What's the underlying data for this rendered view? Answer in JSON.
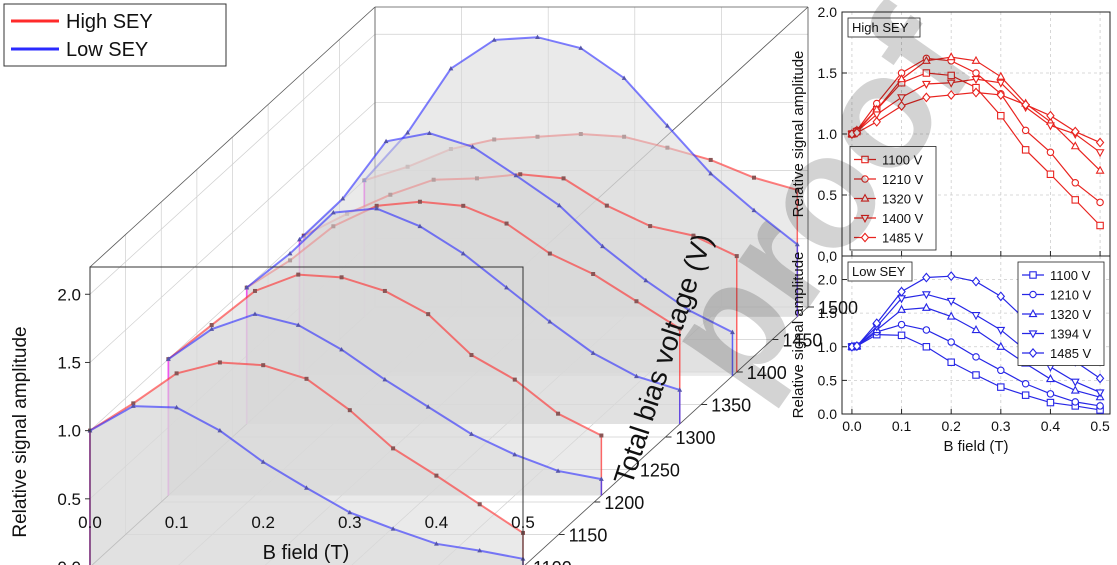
{
  "watermark": "proof",
  "charts": [
    {
      "id": "perspective",
      "type": "line",
      "projection": "3d-waterfall",
      "xlabel": "B field (T)",
      "ylabel": "Relative signal amplitude",
      "zlabel": "Total bias voltage (V)",
      "xlim": [
        0,
        0.5
      ],
      "ylim": [
        0,
        2.2
      ],
      "zlim": [
        1100,
        1500
      ],
      "x_ticks": [
        "0.0",
        "0.1",
        "0.2",
        "0.3",
        "0.4",
        "0.5"
      ],
      "y_ticks": [
        "0.0",
        "0.5",
        "1.0",
        "1.5",
        "2.0"
      ],
      "z_ticks": [
        "1100",
        "1150",
        "1200",
        "1250",
        "1300",
        "1350",
        "1400",
        "1450",
        "1500"
      ],
      "legend": {
        "position": "top-left",
        "entries": [
          {
            "label": "High SEY",
            "color": "#ff2a2a"
          },
          {
            "label": "Low SEY",
            "color": "#2a2aff"
          }
        ]
      },
      "grid": true
    },
    {
      "id": "high-sey",
      "type": "line",
      "panel_label": "High SEY",
      "xlabel": "",
      "ylabel": "Relative signal amplitude",
      "xlim": [
        -0.02,
        0.52
      ],
      "ylim": [
        0,
        2.0
      ],
      "y_ticks": [
        "0,0",
        "0.5",
        "1.0",
        "1.5",
        "2.0"
      ],
      "grid": true,
      "color": "#e8231f",
      "legend_position": "bottom-left",
      "x": [
        0,
        0.01,
        0.05,
        0.1,
        0.15,
        0.2,
        0.25,
        0.3,
        0.35,
        0.4,
        0.45,
        0.5
      ],
      "series": [
        {
          "name": "1100 V",
          "marker": "square",
          "values": [
            1.0,
            1.02,
            1.2,
            1.42,
            1.5,
            1.48,
            1.38,
            1.15,
            0.87,
            0.67,
            0.46,
            0.25
          ]
        },
        {
          "name": "1210 V",
          "marker": "circle",
          "values": [
            1.0,
            1.03,
            1.25,
            1.5,
            1.62,
            1.6,
            1.5,
            1.33,
            1.03,
            0.85,
            0.6,
            0.44
          ]
        },
        {
          "name": "1320 V",
          "marker": "triangle-up",
          "values": [
            1.0,
            1.03,
            1.2,
            1.45,
            1.6,
            1.63,
            1.6,
            1.47,
            1.25,
            1.1,
            0.9,
            0.7
          ]
        },
        {
          "name": "1400 V",
          "marker": "triangle-down",
          "values": [
            1.0,
            1.02,
            1.16,
            1.3,
            1.41,
            1.42,
            1.45,
            1.42,
            1.22,
            1.07,
            1.0,
            0.85
          ]
        },
        {
          "name": "1485 V",
          "marker": "diamond",
          "values": [
            1.0,
            1.01,
            1.1,
            1.23,
            1.3,
            1.32,
            1.34,
            1.32,
            1.24,
            1.15,
            1.02,
            0.93
          ]
        }
      ]
    },
    {
      "id": "low-sey",
      "type": "line",
      "panel_label": "Low SEY",
      "xlabel": "B field (T)",
      "ylabel": "Relative signal amplitude",
      "xlim": [
        -0.02,
        0.52
      ],
      "ylim": [
        0,
        2.35
      ],
      "x_ticks": [
        "0.0",
        "0.1",
        "0.2",
        "0.3",
        "0.4",
        "0.5"
      ],
      "y_ticks": [
        "0.0",
        "0.5",
        "1.0",
        "1.5",
        "2.0"
      ],
      "grid": true,
      "color": "#2626e6",
      "legend_position": "top-right",
      "x": [
        0,
        0.01,
        0.05,
        0.1,
        0.15,
        0.2,
        0.25,
        0.3,
        0.35,
        0.4,
        0.45,
        0.5
      ],
      "series": [
        {
          "name": "1100 V",
          "marker": "square",
          "values": [
            1.0,
            1.01,
            1.18,
            1.17,
            1.0,
            0.77,
            0.58,
            0.4,
            0.28,
            0.17,
            0.12,
            0.06
          ]
        },
        {
          "name": "1210 V",
          "marker": "circle",
          "values": [
            1.0,
            1.01,
            1.22,
            1.33,
            1.25,
            1.07,
            0.85,
            0.65,
            0.45,
            0.3,
            0.18,
            0.12
          ]
        },
        {
          "name": "1320 V",
          "marker": "triangle-up",
          "values": [
            1.0,
            1.01,
            1.25,
            1.55,
            1.58,
            1.45,
            1.25,
            1.0,
            0.75,
            0.52,
            0.35,
            0.25
          ]
        },
        {
          "name": "1394 V",
          "marker": "triangle-down",
          "values": [
            1.0,
            1.01,
            1.3,
            1.72,
            1.78,
            1.68,
            1.47,
            1.25,
            0.95,
            0.7,
            0.48,
            0.32
          ]
        },
        {
          "name": "1485 V",
          "marker": "diamond",
          "values": [
            1.0,
            1.01,
            1.35,
            1.82,
            2.03,
            2.05,
            1.97,
            1.75,
            1.4,
            1.05,
            0.78,
            0.53
          ]
        }
      ]
    }
  ],
  "chart_data": [
    {
      "type": "line",
      "panel": "3d-waterfall",
      "xlabel": "B field (T)",
      "ylabel": "Relative signal amplitude",
      "zlabel": "Total bias voltage (V)",
      "series": [
        {
          "name": "High SEY",
          "color": "#ff2a2a",
          "values": [
            {
              "z": 1100,
              "x": [
                0,
                0.05,
                0.1,
                0.15,
                0.2,
                0.25,
                0.3,
                0.35,
                0.4,
                0.45,
                0.5
              ],
              "y": [
                1.0,
                1.2,
                1.42,
                1.5,
                1.48,
                1.38,
                1.15,
                0.87,
                0.67,
                0.46,
                0.25
              ]
            },
            {
              "z": 1210,
              "x": [
                0,
                0.05,
                0.1,
                0.15,
                0.2,
                0.25,
                0.3,
                0.35,
                0.4,
                0.45,
                0.5
              ],
              "y": [
                1.0,
                1.25,
                1.5,
                1.62,
                1.6,
                1.5,
                1.33,
                1.03,
                0.85,
                0.6,
                0.44
              ]
            },
            {
              "z": 1320,
              "x": [
                0,
                0.05,
                0.1,
                0.15,
                0.2,
                0.25,
                0.3,
                0.35,
                0.4,
                0.45,
                0.5
              ],
              "y": [
                1.0,
                1.2,
                1.45,
                1.6,
                1.63,
                1.6,
                1.47,
                1.25,
                1.1,
                0.9,
                0.7
              ]
            },
            {
              "z": 1400,
              "x": [
                0,
                0.05,
                0.1,
                0.15,
                0.2,
                0.25,
                0.3,
                0.35,
                0.4,
                0.45,
                0.5
              ],
              "y": [
                1.0,
                1.16,
                1.3,
                1.41,
                1.42,
                1.45,
                1.42,
                1.22,
                1.07,
                1.0,
                0.85
              ]
            },
            {
              "z": 1485,
              "x": [
                0,
                0.05,
                0.1,
                0.15,
                0.2,
                0.25,
                0.3,
                0.35,
                0.4,
                0.45,
                0.5
              ],
              "y": [
                1.0,
                1.1,
                1.23,
                1.3,
                1.32,
                1.34,
                1.32,
                1.24,
                1.15,
                1.02,
                0.93
              ]
            }
          ]
        },
        {
          "name": "Low SEY",
          "color": "#2a2aff",
          "values": [
            {
              "z": 1100,
              "x": [
                0,
                0.05,
                0.1,
                0.15,
                0.2,
                0.25,
                0.3,
                0.35,
                0.4,
                0.45,
                0.5
              ],
              "y": [
                1.0,
                1.18,
                1.17,
                1.0,
                0.77,
                0.58,
                0.4,
                0.28,
                0.17,
                0.12,
                0.06
              ]
            },
            {
              "z": 1210,
              "x": [
                0,
                0.05,
                0.1,
                0.15,
                0.2,
                0.25,
                0.3,
                0.35,
                0.4,
                0.45,
                0.5
              ],
              "y": [
                1.0,
                1.22,
                1.33,
                1.25,
                1.07,
                0.85,
                0.65,
                0.45,
                0.3,
                0.18,
                0.12
              ]
            },
            {
              "z": 1320,
              "x": [
                0,
                0.05,
                0.1,
                0.15,
                0.2,
                0.25,
                0.3,
                0.35,
                0.4,
                0.45,
                0.5
              ],
              "y": [
                1.0,
                1.25,
                1.55,
                1.58,
                1.45,
                1.25,
                1.0,
                0.75,
                0.52,
                0.35,
                0.25
              ]
            },
            {
              "z": 1394,
              "x": [
                0,
                0.05,
                0.1,
                0.15,
                0.2,
                0.25,
                0.3,
                0.35,
                0.4,
                0.45,
                0.5
              ],
              "y": [
                1.0,
                1.3,
                1.72,
                1.78,
                1.68,
                1.47,
                1.25,
                0.95,
                0.7,
                0.48,
                0.32
              ]
            },
            {
              "z": 1485,
              "x": [
                0,
                0.05,
                0.1,
                0.15,
                0.2,
                0.25,
                0.3,
                0.35,
                0.4,
                0.45,
                0.5
              ],
              "y": [
                1.0,
                1.35,
                1.82,
                2.03,
                2.05,
                1.97,
                1.75,
                1.4,
                1.05,
                0.78,
                0.53
              ]
            }
          ]
        }
      ]
    }
  ]
}
